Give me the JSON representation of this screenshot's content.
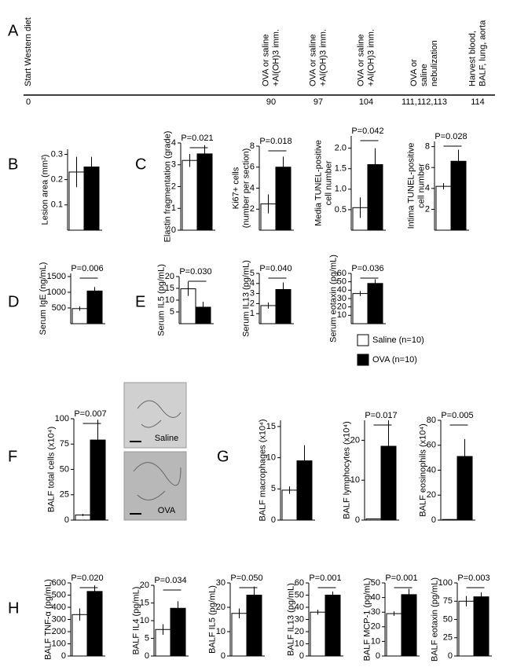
{
  "panel_labels": [
    "A",
    "B",
    "C",
    "D",
    "E",
    "F",
    "G",
    "H"
  ],
  "timeline": {
    "events": [
      {
        "lines": [
          "Start Western diet"
        ],
        "day": "0"
      },
      {
        "lines": [
          "OVA or saline",
          "+Al(OH)3 imm."
        ],
        "day": "90"
      },
      {
        "lines": [
          "OVA or saline",
          "+Al(OH)3 imm."
        ],
        "day": "97"
      },
      {
        "lines": [
          "OVA or saline",
          "+Al(OH)3 imm."
        ],
        "day": "104"
      },
      {
        "lines": [
          "OVA or",
          "saline",
          "nebulization"
        ],
        "day": "111,112,113"
      },
      {
        "lines": [
          "Harvest blood,",
          "BALF, lung, aorta"
        ],
        "day": "114"
      }
    ]
  },
  "legend": [
    {
      "name": "Saline (n=10)",
      "color": "#ffffff"
    },
    {
      "name": "OVA (n=10)",
      "color": "#000000"
    }
  ],
  "images": [
    {
      "label": "Saline"
    },
    {
      "label": "OVA"
    }
  ],
  "chart_data": [
    {
      "type": "bar",
      "ylabel": [
        "Lesion area (mm²)"
      ],
      "categories": [
        null,
        null
      ],
      "values": [
        0.23,
        0.25
      ],
      "errors": [
        0.06,
        0.04
      ],
      "ylim": [
        0,
        0.32
      ],
      "yticks": [
        0.1,
        0.2,
        0.3
      ]
    },
    {
      "type": "bar",
      "ylabel": [
        "Elastin fragmentation (grade)"
      ],
      "annotation": "P=0.021",
      "categories": [
        null,
        null
      ],
      "values": [
        3.2,
        3.5
      ],
      "errors": [
        0.3,
        0.4
      ],
      "ylim": [
        0,
        4
      ],
      "yticks": [
        0,
        1,
        2,
        3,
        4
      ]
    },
    {
      "type": "bar",
      "ylabel": [
        "Ki67+ cells",
        "(number per section)"
      ],
      "annotation": "P=0.018",
      "categories": [
        null,
        null
      ],
      "values": [
        2.5,
        6.0
      ],
      "errors": [
        0.9,
        1.0
      ],
      "ylim": [
        0,
        8
      ],
      "yticks": [
        2,
        4,
        6,
        8
      ]
    },
    {
      "type": "bar",
      "ylabel": [
        "Media TUNEL-positive",
        "cell number"
      ],
      "annotation": "P=0.042",
      "categories": [
        null,
        null
      ],
      "values": [
        0.55,
        1.6
      ],
      "errors": [
        0.25,
        0.4
      ],
      "ylim": [
        0,
        2.3
      ],
      "yticks": [
        0.5,
        {
          "value": 1,
          "label": "1.0"
        },
        1.5,
        {
          "value": 2,
          "label": "2.0"
        }
      ]
    },
    {
      "type": "bar",
      "ylabel": [
        "Intima TUNEL-positive",
        "cell number"
      ],
      "annotation": "P=0.028",
      "categories": [
        null,
        null
      ],
      "values": [
        4.2,
        6.6
      ],
      "errors": [
        0.3,
        1.1
      ],
      "ylim": [
        0,
        8.5
      ],
      "yticks": [
        2,
        4,
        6,
        8
      ]
    },
    {
      "type": "bar",
      "ylabel": [
        "Serum IgE (ng/mL)"
      ],
      "annotation": "P=0.006",
      "categories": [
        null,
        null
      ],
      "values": [
        480,
        1040
      ],
      "errors": [
        70,
        130
      ],
      "ylim": [
        0,
        1600
      ],
      "yticks": [
        500,
        1000,
        1500
      ]
    },
    {
      "type": "bar",
      "ylabel": [
        "Serum IL5 (pg/mL)"
      ],
      "annotation": "P=0.030",
      "categories": [
        null,
        null
      ],
      "values": [
        14.8,
        7
      ],
      "errors": [
        3,
        2.3
      ],
      "ylim": [
        0,
        20
      ],
      "yticks": [
        5,
        10,
        15,
        20
      ]
    },
    {
      "type": "bar",
      "ylabel": [
        "Serum IL13 (pg/mL)"
      ],
      "annotation": "P=0.040",
      "categories": [
        null,
        null
      ],
      "values": [
        1.8,
        3.4
      ],
      "errors": [
        0.3,
        0.7
      ],
      "ylim": [
        0,
        5
      ],
      "yticks": [
        1,
        2,
        3,
        4,
        5
      ]
    },
    {
      "type": "bar",
      "ylabel": [
        "Serum eotaxin (pg/mL)"
      ],
      "annotation": "P=0.036",
      "categories": [
        null,
        null
      ],
      "values": [
        36,
        48
      ],
      "errors": [
        3,
        5
      ],
      "ylim": [
        0,
        60
      ],
      "yticks": [
        10,
        20,
        30,
        40,
        50,
        60
      ]
    },
    {
      "type": "bar",
      "ylabel": [
        "BALF total cells (x10⁴)"
      ],
      "annotation": "P=0.007",
      "categories": [
        null,
        null
      ],
      "values": [
        5,
        79
      ],
      "errors": [
        1,
        20
      ],
      "ylim": [
        0,
        100
      ],
      "yticks": [
        0,
        25,
        50,
        75,
        100
      ]
    },
    {
      "type": "bar",
      "ylabel": [
        "BALF macrophages (x10⁴)"
      ],
      "categories": [
        null,
        null
      ],
      "values": [
        4.8,
        9.5
      ],
      "errors": [
        0.6,
        2.5
      ],
      "ylim": [
        0,
        16
      ],
      "yticks": [
        0,
        5,
        10,
        15
      ]
    },
    {
      "type": "bar",
      "ylabel": [
        "BALF lymphocytes (x10⁴)"
      ],
      "annotation": "P=0.017",
      "categories": [
        null,
        null
      ],
      "values": [
        0.3,
        18.5
      ],
      "errors": [
        0.1,
        6.5
      ],
      "ylim": [
        0,
        25
      ],
      "yticks": [
        0,
        10,
        20
      ]
    },
    {
      "type": "bar",
      "ylabel": [
        "BALF eosinophils (x10⁴)"
      ],
      "annotation": "P=0.005",
      "categories": [
        null,
        null
      ],
      "values": [
        0.5,
        51
      ],
      "errors": [
        0.2,
        14
      ],
      "ylim": [
        0,
        80
      ],
      "yticks": [
        0,
        20,
        40,
        60,
        80
      ]
    },
    {
      "type": "bar",
      "ylabel": [
        "BALF TNF-α (pg/mL)"
      ],
      "annotation": "P=0.020",
      "categories": [
        null,
        null
      ],
      "values": [
        340,
        530
      ],
      "errors": [
        50,
        50
      ],
      "ylim": [
        0,
        600
      ],
      "yticks": [
        0,
        100,
        200,
        300,
        400,
        500,
        600
      ]
    },
    {
      "type": "bar",
      "ylabel": [
        "BALF IL4 (pg/mL)"
      ],
      "annotation": "P=0.034",
      "categories": [
        null,
        null
      ],
      "values": [
        7.5,
        13.5
      ],
      "errors": [
        1.5,
        2
      ],
      "ylim": [
        0,
        20
      ],
      "yticks": [
        0,
        5,
        10,
        15,
        20
      ]
    },
    {
      "type": "bar",
      "ylabel": [
        "BALF IL5 (pg/mL)"
      ],
      "annotation": "P=0.050",
      "categories": [
        null,
        null
      ],
      "values": [
        17.5,
        25
      ],
      "errors": [
        2,
        3.5
      ],
      "ylim": [
        0,
        30
      ],
      "yticks": [
        0,
        10,
        20,
        30
      ]
    },
    {
      "type": "bar",
      "ylabel": [
        "BALF IL13 (pg/mL)"
      ],
      "annotation": "P=0.001",
      "categories": [
        null,
        null
      ],
      "values": [
        36,
        50
      ],
      "errors": [
        2,
        3
      ],
      "ylim": [
        0,
        60
      ],
      "yticks": [
        0,
        10,
        20,
        30,
        40,
        50,
        60
      ]
    },
    {
      "type": "bar",
      "ylabel": [
        "BALF MCP-1 (pg/mL)"
      ],
      "annotation": "P=0.001",
      "categories": [
        null,
        null
      ],
      "values": [
        29,
        42
      ],
      "errors": [
        1.5,
        4
      ],
      "ylim": [
        0,
        50
      ],
      "yticks": [
        0,
        10,
        20,
        30,
        40,
        50
      ]
    },
    {
      "type": "bar",
      "ylabel": [
        "BALF eotaxin (pg/mL)"
      ],
      "annotation": "P=0.003",
      "categories": [
        null,
        null
      ],
      "values": [
        75,
        81
      ],
      "errors": [
        7,
        6
      ],
      "ylim": [
        0,
        100
      ],
      "yticks": [
        0,
        25,
        50,
        75,
        100
      ]
    }
  ]
}
